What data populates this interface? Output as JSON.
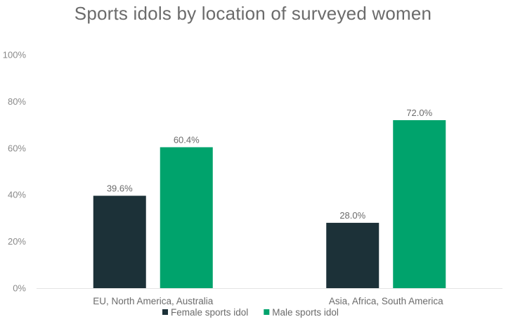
{
  "chart_data": {
    "type": "bar",
    "title": "Sports idols by location of surveyed women",
    "categories": [
      "EU, North America, Australia",
      "Asia, Africa, South America"
    ],
    "series": [
      {
        "name": "Female sports idol",
        "values": [
          39.6,
          28.0
        ],
        "color": "#1c3138"
      },
      {
        "name": "Male sports idol",
        "values": [
          60.4,
          72.0
        ],
        "color": "#00a36c"
      }
    ],
    "value_labels": [
      [
        "39.6%",
        "28.0%"
      ],
      [
        "60.4%",
        "72.0%"
      ]
    ],
    "yticks": [
      "0%",
      "20%",
      "40%",
      "60%",
      "80%",
      "100%"
    ],
    "ylim": [
      0,
      100
    ],
    "grid": false,
    "legend_position": "bottom"
  }
}
